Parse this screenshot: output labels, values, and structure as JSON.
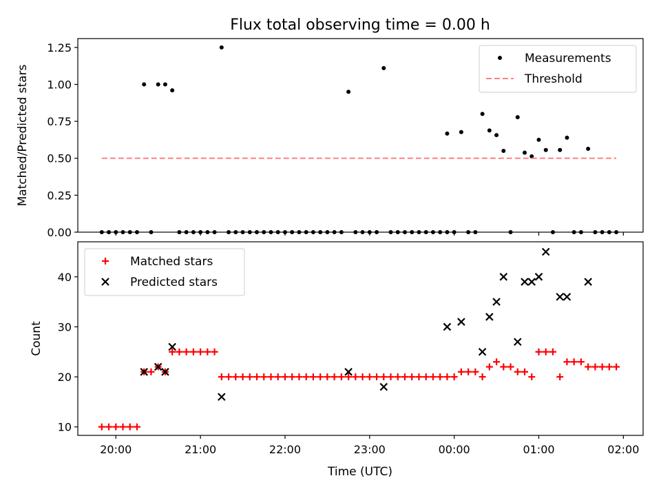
{
  "chart_data": [
    {
      "type": "scatter",
      "title": "Flux total observing time = 0.00 h",
      "ylabel": "Matched/Predicted stars",
      "xlabel": "",
      "xlim": [
        "19:33",
        "02:14"
      ],
      "ylim": [
        0,
        1.31
      ],
      "grid": false,
      "legend_position": "top-right",
      "yticks": [
        "0.00",
        "0.25",
        "0.50",
        "0.75",
        "1.00",
        "1.25"
      ],
      "xticks": [
        "20:00",
        "21:00",
        "22:00",
        "23:00",
        "00:00",
        "01:00",
        "02:00"
      ],
      "series": [
        {
          "name": "Measurements",
          "kind": "points",
          "color": "#000000",
          "points": [
            [
              "19:50",
              0.0
            ],
            [
              "19:55",
              0.0
            ],
            [
              "20:00",
              0.0
            ],
            [
              "20:05",
              0.0
            ],
            [
              "20:10",
              0.0
            ],
            [
              "20:15",
              0.0
            ],
            [
              "20:20",
              1.0
            ],
            [
              "20:25",
              0.0
            ],
            [
              "20:30",
              1.0
            ],
            [
              "20:35",
              1.0
            ],
            [
              "20:40",
              0.96
            ],
            [
              "20:45",
              0.0
            ],
            [
              "20:50",
              0.0
            ],
            [
              "20:55",
              0.0
            ],
            [
              "21:00",
              0.0
            ],
            [
              "21:05",
              0.0
            ],
            [
              "21:10",
              0.0
            ],
            [
              "21:15",
              1.25
            ],
            [
              "21:20",
              0.0
            ],
            [
              "21:25",
              0.0
            ],
            [
              "21:30",
              0.0
            ],
            [
              "21:35",
              0.0
            ],
            [
              "21:40",
              0.0
            ],
            [
              "21:45",
              0.0
            ],
            [
              "21:50",
              0.0
            ],
            [
              "21:55",
              0.0
            ],
            [
              "22:00",
              0.0
            ],
            [
              "22:05",
              0.0
            ],
            [
              "22:10",
              0.0
            ],
            [
              "22:15",
              0.0
            ],
            [
              "22:20",
              0.0
            ],
            [
              "22:25",
              0.0
            ],
            [
              "22:30",
              0.0
            ],
            [
              "22:35",
              0.0
            ],
            [
              "22:40",
              0.0
            ],
            [
              "22:45",
              0.95
            ],
            [
              "22:50",
              0.0
            ],
            [
              "22:55",
              0.0
            ],
            [
              "23:00",
              0.0
            ],
            [
              "23:05",
              0.0
            ],
            [
              "23:10",
              1.11
            ],
            [
              "23:15",
              0.0
            ],
            [
              "23:20",
              0.0
            ],
            [
              "23:25",
              0.0
            ],
            [
              "23:30",
              0.0
            ],
            [
              "23:35",
              0.0
            ],
            [
              "23:40",
              0.0
            ],
            [
              "23:45",
              0.0
            ],
            [
              "23:50",
              0.0
            ],
            [
              "23:55",
              0.0
            ],
            [
              "23:55",
              0.667
            ],
            [
              "00:00",
              0.0
            ],
            [
              "00:05",
              0.677
            ],
            [
              "00:10",
              0.0
            ],
            [
              "00:15",
              0.0
            ],
            [
              "00:20",
              0.8
            ],
            [
              "00:25",
              0.688
            ],
            [
              "00:30",
              0.657
            ],
            [
              "00:35",
              0.55
            ],
            [
              "00:40",
              0.0
            ],
            [
              "00:45",
              0.778
            ],
            [
              "00:50",
              0.538
            ],
            [
              "00:55",
              0.513
            ],
            [
              "01:00",
              0.625
            ],
            [
              "01:05",
              0.556
            ],
            [
              "01:10",
              0.0
            ],
            [
              "01:15",
              0.556
            ],
            [
              "01:20",
              0.639
            ],
            [
              "01:25",
              0.0
            ],
            [
              "01:30",
              0.0
            ],
            [
              "01:35",
              0.564
            ],
            [
              "01:40",
              0.0
            ],
            [
              "01:45",
              0.0
            ],
            [
              "01:50",
              0.0
            ],
            [
              "01:55",
              0.0
            ]
          ]
        },
        {
          "name": "Threshold",
          "kind": "dashed-line",
          "color": "#ff8080",
          "points": [
            [
              "19:50",
              0.5
            ],
            [
              "01:55",
              0.5
            ]
          ]
        }
      ]
    },
    {
      "type": "scatter",
      "title": "",
      "ylabel": "Count",
      "xlabel": "Time (UTC)",
      "xlim": [
        "19:33",
        "02:14"
      ],
      "ylim": [
        8.3,
        47.0
      ],
      "grid": false,
      "legend_position": "top-left",
      "yticks": [
        "10",
        "20",
        "30",
        "40"
      ],
      "xticks": [
        "20:00",
        "21:00",
        "22:00",
        "23:00",
        "00:00",
        "01:00",
        "02:00"
      ],
      "series": [
        {
          "name": "Matched stars",
          "kind": "plus",
          "color": "#ff0000",
          "points": [
            [
              "19:50",
              10
            ],
            [
              "19:55",
              10
            ],
            [
              "20:00",
              10
            ],
            [
              "20:05",
              10
            ],
            [
              "20:10",
              10
            ],
            [
              "20:15",
              10
            ],
            [
              "20:20",
              21
            ],
            [
              "20:25",
              21
            ],
            [
              "20:30",
              22
            ],
            [
              "20:35",
              21
            ],
            [
              "20:40",
              25
            ],
            [
              "20:45",
              25
            ],
            [
              "20:50",
              25
            ],
            [
              "20:55",
              25
            ],
            [
              "21:00",
              25
            ],
            [
              "21:05",
              25
            ],
            [
              "21:10",
              25
            ],
            [
              "21:15",
              20
            ],
            [
              "21:20",
              20
            ],
            [
              "21:25",
              20
            ],
            [
              "21:30",
              20
            ],
            [
              "21:35",
              20
            ],
            [
              "21:40",
              20
            ],
            [
              "21:45",
              20
            ],
            [
              "21:50",
              20
            ],
            [
              "21:55",
              20
            ],
            [
              "22:00",
              20
            ],
            [
              "22:05",
              20
            ],
            [
              "22:10",
              20
            ],
            [
              "22:15",
              20
            ],
            [
              "22:20",
              20
            ],
            [
              "22:25",
              20
            ],
            [
              "22:30",
              20
            ],
            [
              "22:35",
              20
            ],
            [
              "22:40",
              20
            ],
            [
              "22:45",
              20
            ],
            [
              "22:50",
              20
            ],
            [
              "22:55",
              20
            ],
            [
              "23:00",
              20
            ],
            [
              "23:05",
              20
            ],
            [
              "23:10",
              20
            ],
            [
              "23:15",
              20
            ],
            [
              "23:20",
              20
            ],
            [
              "23:25",
              20
            ],
            [
              "23:30",
              20
            ],
            [
              "23:35",
              20
            ],
            [
              "23:40",
              20
            ],
            [
              "23:45",
              20
            ],
            [
              "23:50",
              20
            ],
            [
              "23:55",
              20
            ],
            [
              "00:00",
              20
            ],
            [
              "00:05",
              21
            ],
            [
              "00:10",
              21
            ],
            [
              "00:15",
              21
            ],
            [
              "00:20",
              20
            ],
            [
              "00:25",
              22
            ],
            [
              "00:30",
              23
            ],
            [
              "00:35",
              22
            ],
            [
              "00:40",
              22
            ],
            [
              "00:45",
              21
            ],
            [
              "00:50",
              21
            ],
            [
              "00:55",
              20
            ],
            [
              "01:00",
              25
            ],
            [
              "01:05",
              25
            ],
            [
              "01:10",
              25
            ],
            [
              "01:15",
              20
            ],
            [
              "01:20",
              23
            ],
            [
              "01:25",
              23
            ],
            [
              "01:30",
              23
            ],
            [
              "01:35",
              22
            ],
            [
              "01:40",
              22
            ],
            [
              "01:45",
              22
            ],
            [
              "01:50",
              22
            ],
            [
              "01:55",
              22
            ]
          ]
        },
        {
          "name": "Predicted stars",
          "kind": "x",
          "color": "#000000",
          "points": [
            [
              "20:20",
              21
            ],
            [
              "20:30",
              22
            ],
            [
              "20:35",
              21
            ],
            [
              "20:40",
              26
            ],
            [
              "21:15",
              16
            ],
            [
              "22:45",
              21
            ],
            [
              "23:10",
              18
            ],
            [
              "23:55",
              30
            ],
            [
              "00:05",
              31
            ],
            [
              "00:20",
              25
            ],
            [
              "00:25",
              32
            ],
            [
              "00:30",
              35
            ],
            [
              "00:35",
              40
            ],
            [
              "00:45",
              27
            ],
            [
              "00:50",
              39
            ],
            [
              "00:55",
              39
            ],
            [
              "01:00",
              40
            ],
            [
              "01:05",
              45
            ],
            [
              "01:15",
              36
            ],
            [
              "01:20",
              36
            ],
            [
              "01:35",
              39
            ]
          ]
        }
      ]
    }
  ]
}
